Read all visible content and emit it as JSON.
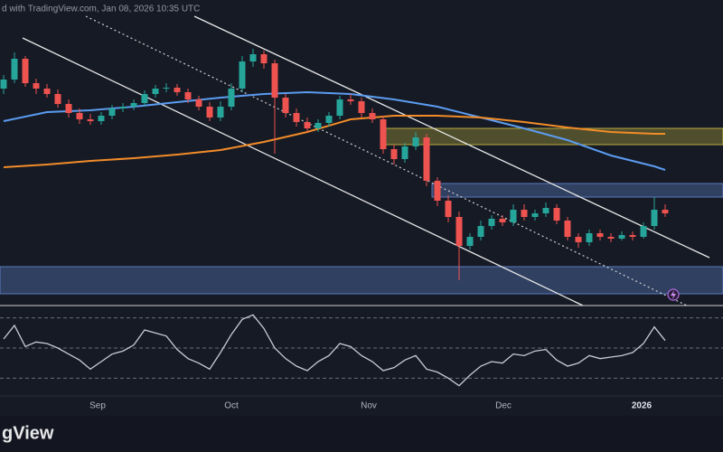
{
  "header": {
    "text": "d with TradingView.com, Jan 08, 2026 10:35 UTC"
  },
  "chart_data": {
    "type": "candlestick",
    "x_labels": [
      "Sep",
      "Oct",
      "Nov",
      "Dec",
      "2026"
    ],
    "ylim": [
      0,
      320
    ],
    "up_color": "#26a69a",
    "down_color": "#ef5350",
    "open": [
      240,
      250,
      273,
      246,
      240,
      234,
      223,
      213,
      206,
      204,
      210,
      218,
      220,
      224,
      234,
      240,
      241,
      236,
      228,
      220,
      208,
      220,
      240,
      270,
      278,
      268,
      230,
      213,
      203,
      196,
      202,
      210,
      228,
      226,
      213,
      206,
      173,
      162,
      176,
      186,
      138,
      116,
      98,
      66,
      76,
      88,
      96,
      92,
      106,
      98,
      102,
      108,
      94,
      76,
      70,
      80,
      76,
      74,
      78,
      76,
      88,
      106
    ],
    "high": [
      255,
      280,
      276,
      251,
      245,
      239,
      228,
      218,
      212,
      214,
      222,
      224,
      228,
      238,
      244,
      246,
      245,
      240,
      232,
      225,
      226,
      246,
      276,
      284,
      282,
      272,
      234,
      218,
      208,
      206,
      214,
      232,
      234,
      230,
      218,
      210,
      178,
      180,
      192,
      190,
      142,
      122,
      104,
      80,
      94,
      100,
      100,
      112,
      112,
      106,
      114,
      112,
      98,
      80,
      84,
      84,
      80,
      82,
      82,
      92,
      120,
      112
    ],
    "low": [
      234,
      246,
      242,
      234,
      230,
      219,
      208,
      201,
      200,
      200,
      206,
      214,
      216,
      220,
      230,
      236,
      232,
      224,
      216,
      204,
      204,
      216,
      236,
      264,
      262,
      168,
      208,
      198,
      192,
      192,
      198,
      206,
      222,
      208,
      202,
      168,
      156,
      158,
      172,
      132,
      110,
      92,
      28,
      62,
      72,
      84,
      88,
      88,
      94,
      94,
      98,
      90,
      72,
      64,
      66,
      72,
      70,
      72,
      72,
      74,
      84,
      98
    ],
    "close": [
      250,
      273,
      246,
      240,
      234,
      223,
      213,
      206,
      204,
      210,
      218,
      220,
      224,
      234,
      240,
      241,
      236,
      228,
      220,
      208,
      220,
      240,
      270,
      278,
      268,
      230,
      213,
      203,
      196,
      202,
      210,
      228,
      226,
      213,
      206,
      173,
      162,
      176,
      186,
      138,
      116,
      98,
      66,
      76,
      88,
      96,
      92,
      106,
      98,
      102,
      108,
      94,
      76,
      70,
      80,
      76,
      74,
      78,
      76,
      88,
      106,
      102
    ],
    "moving_averages": [
      {
        "color": "#5b9cf0",
        "x": [
          0,
          4,
          8,
          12,
          16,
          20,
          24,
          28,
          32,
          36,
          40,
          44,
          48,
          52,
          56,
          60,
          61
        ],
        "values": [
          204,
          214,
          216,
          220,
          225,
          230,
          234,
          236,
          234,
          228,
          220,
          208,
          196,
          183,
          166,
          154,
          150
        ]
      },
      {
        "color": "#f28c28",
        "x": [
          0,
          4,
          8,
          12,
          16,
          20,
          24,
          28,
          32,
          36,
          40,
          44,
          48,
          52,
          56,
          60,
          61
        ],
        "values": [
          153,
          156,
          160,
          163,
          167,
          172,
          181,
          192,
          206,
          210,
          210,
          208,
          203,
          197,
          192,
          190,
          190
        ]
      }
    ],
    "rsi": {
      "color": "#c8cbd6",
      "ylim": [
        20,
        77
      ],
      "yticks": [
        30,
        50,
        70
      ],
      "values": [
        56,
        65,
        51,
        54,
        53,
        50,
        46,
        42,
        36,
        41,
        46,
        48,
        52,
        62,
        60,
        58,
        49,
        43,
        40,
        36,
        47,
        59,
        69,
        72,
        63,
        50,
        43,
        38,
        35,
        41,
        45,
        53,
        51,
        45,
        41,
        35,
        37,
        42,
        45,
        36,
        34,
        30,
        25,
        32,
        38,
        41,
        40,
        46,
        45,
        48,
        49,
        42,
        38,
        40,
        45,
        43,
        44,
        45,
        47,
        53,
        64,
        55
      ]
    }
  },
  "footer": {
    "logo": "gView"
  }
}
